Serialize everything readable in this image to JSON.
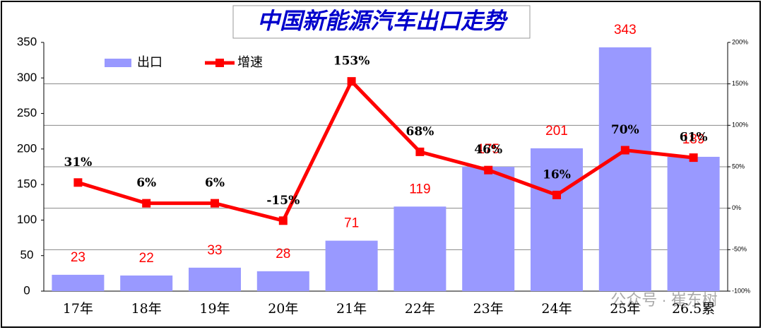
{
  "chart_data": {
    "type": "bar-line",
    "title": "中国新能源汽车出口走势",
    "categories": [
      "17年",
      "18年",
      "19年",
      "20年",
      "21年",
      "22年",
      "23年",
      "24年",
      "25年",
      "26.5累"
    ],
    "series": [
      {
        "name": "出口",
        "type": "bar",
        "color": "#9999ff",
        "label_color": "#ff0000",
        "values": [
          23,
          22,
          33,
          28,
          71,
          119,
          175,
          201,
          343,
          189
        ]
      },
      {
        "name": "增速",
        "type": "line",
        "axis": "y2",
        "color": "#ff0000",
        "label_color": "#000000",
        "values": [
          31,
          6,
          6,
          -15,
          153,
          68,
          46,
          16,
          70,
          61
        ],
        "value_labels": [
          "31%",
          "6%",
          "6%",
          "-15%",
          "153%",
          "68%",
          "46%",
          "16%",
          "70%",
          "61%"
        ]
      }
    ],
    "ylim": [
      0,
      350
    ],
    "yticks": [
      0,
      50,
      100,
      150,
      200,
      250,
      300,
      350
    ],
    "y2lim": [
      -100,
      200
    ],
    "y2ticks": [
      {
        "value": -100,
        "label": "-100%"
      },
      {
        "value": -50,
        "label": "-50%"
      },
      {
        "value": 0,
        "label": "0%"
      },
      {
        "value": 50,
        "label": "50%"
      },
      {
        "value": 100,
        "label": "100%"
      },
      {
        "value": 150,
        "label": "150%"
      },
      {
        "value": 200,
        "label": "200%"
      }
    ],
    "grid": true,
    "legend": "top-left",
    "watermark": "公众号 · 崔东树"
  }
}
